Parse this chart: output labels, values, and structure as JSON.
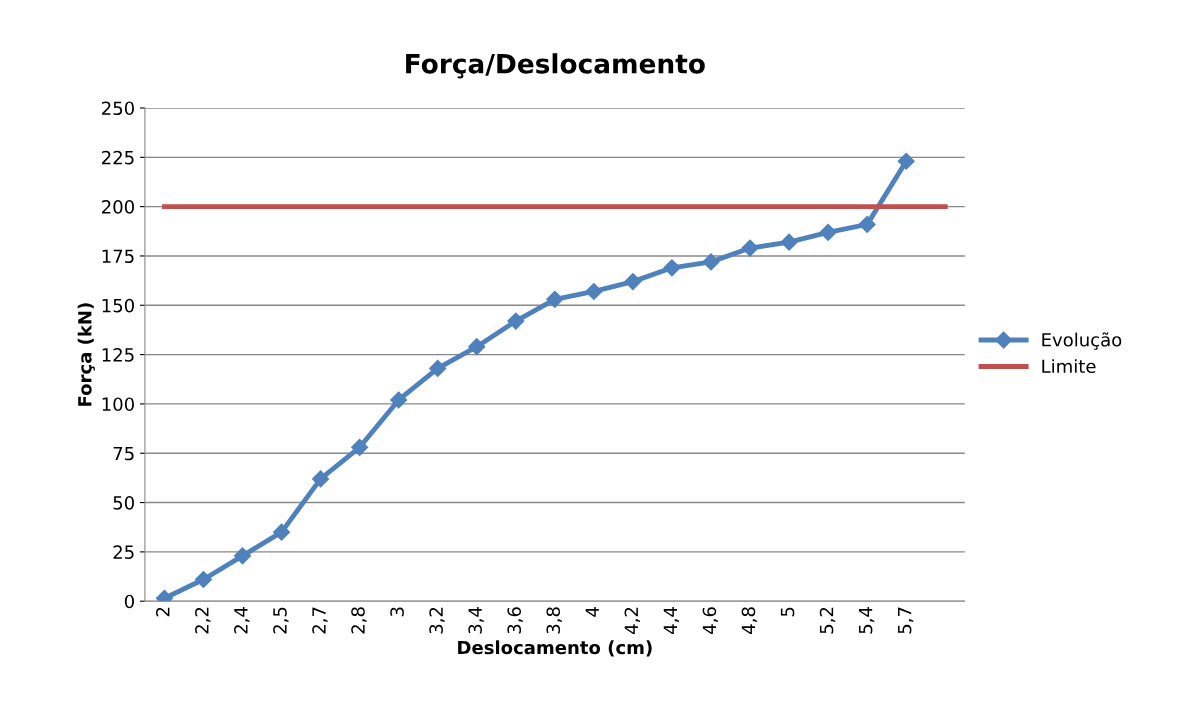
{
  "chart_data": {
    "type": "line",
    "title": "Força/Deslocamento",
    "xlabel": "Deslocamento (cm)",
    "ylabel": "Força (kN)",
    "categories": [
      "2",
      "2,2",
      "2,4",
      "2,5",
      "2,7",
      "2,8",
      "3",
      "3,2",
      "3,4",
      "3,6",
      "3,8",
      "4",
      "4,2",
      "4,4",
      "4,6",
      "4,8",
      "5",
      "5,2",
      "5,4",
      "5,7",
      null
    ],
    "series": [
      {
        "name": "Evolução",
        "color": "#4f81bd",
        "marker": "diamond",
        "values": [
          1.5,
          11,
          23,
          35,
          62,
          78,
          102,
          118,
          129,
          142,
          153,
          157,
          162,
          169,
          172,
          179,
          182,
          187,
          191,
          223,
          null
        ]
      },
      {
        "name": "Limite",
        "color": "#c0504d",
        "marker": "none",
        "values": [
          200,
          200,
          200,
          200,
          200,
          200,
          200,
          200,
          200,
          200,
          200,
          200,
          200,
          200,
          200,
          200,
          200,
          200,
          200,
          200,
          200
        ]
      }
    ],
    "ylim": [
      0,
      250
    ],
    "yticks": [
      0,
      25,
      50,
      75,
      100,
      125,
      150,
      175,
      200,
      225,
      250
    ],
    "grid": "y",
    "legend": "right",
    "line_style": "solid"
  }
}
